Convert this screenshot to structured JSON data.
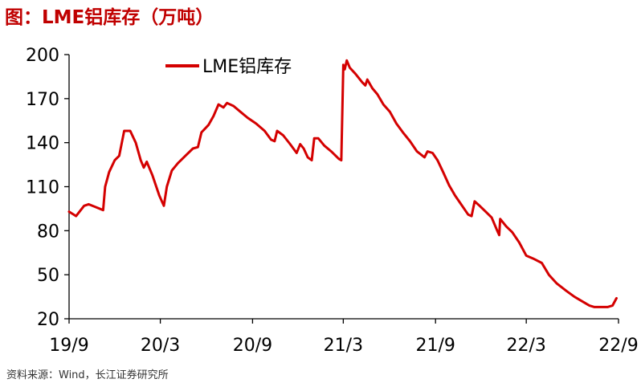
{
  "title": "图：LME铝库存（万吨）",
  "source": "资料来源：Wind，长江证券研究所",
  "colors": {
    "series": "#d40000",
    "title": "#c00000",
    "axis": "#000000"
  },
  "chart_data": {
    "type": "line",
    "title": "图：LME铝库存（万吨）",
    "xlabel": "",
    "ylabel": "",
    "x_ticks": [
      "19/9",
      "20/3",
      "20/9",
      "21/3",
      "21/9",
      "22/3",
      "22/9"
    ],
    "x_tick_dates": [
      "2019-09",
      "2020-03",
      "2020-09",
      "2021-03",
      "2021-09",
      "2022-03",
      "2022-09"
    ],
    "xlim": [
      "2019-09",
      "2022-09"
    ],
    "y_ticks": [
      20,
      50,
      80,
      110,
      140,
      170,
      200
    ],
    "ylim": [
      20,
      200
    ],
    "grid": false,
    "legend_position": "top-left",
    "series": [
      {
        "name": "LME铝库存",
        "color": "#d40000",
        "points": [
          [
            "2019-09-01",
            93
          ],
          [
            "2019-09-15",
            90
          ],
          [
            "2019-10-01",
            97
          ],
          [
            "2019-10-10",
            98
          ],
          [
            "2019-10-25",
            96
          ],
          [
            "2019-11-08",
            94
          ],
          [
            "2019-11-12",
            110
          ],
          [
            "2019-11-20",
            120
          ],
          [
            "2019-12-01",
            128
          ],
          [
            "2019-12-10",
            131
          ],
          [
            "2019-12-20",
            148
          ],
          [
            "2020-01-01",
            148
          ],
          [
            "2020-01-12",
            140
          ],
          [
            "2020-01-22",
            128
          ],
          [
            "2020-01-28",
            123
          ],
          [
            "2020-02-03",
            127
          ],
          [
            "2020-02-14",
            118
          ],
          [
            "2020-02-28",
            104
          ],
          [
            "2020-03-08",
            97
          ],
          [
            "2020-03-14",
            110
          ],
          [
            "2020-03-24",
            121
          ],
          [
            "2020-04-05",
            126
          ],
          [
            "2020-04-20",
            131
          ],
          [
            "2020-05-05",
            136
          ],
          [
            "2020-05-15",
            137
          ],
          [
            "2020-05-22",
            147
          ],
          [
            "2020-06-05",
            152
          ],
          [
            "2020-06-15",
            158
          ],
          [
            "2020-06-25",
            166
          ],
          [
            "2020-07-05",
            164
          ],
          [
            "2020-07-12",
            167
          ],
          [
            "2020-07-25",
            165
          ],
          [
            "2020-08-08",
            161
          ],
          [
            "2020-08-22",
            157
          ],
          [
            "2020-09-08",
            153
          ],
          [
            "2020-09-25",
            148
          ],
          [
            "2020-10-08",
            142
          ],
          [
            "2020-10-15",
            141
          ],
          [
            "2020-10-20",
            148
          ],
          [
            "2020-11-01",
            145
          ],
          [
            "2020-11-15",
            139
          ],
          [
            "2020-11-28",
            133
          ],
          [
            "2020-12-05",
            139
          ],
          [
            "2020-12-12",
            136
          ],
          [
            "2020-12-20",
            130
          ],
          [
            "2020-12-28",
            128
          ],
          [
            "2021-01-02",
            143
          ],
          [
            "2021-01-10",
            143
          ],
          [
            "2021-01-22",
            138
          ],
          [
            "2021-02-05",
            134
          ],
          [
            "2021-02-20",
            129
          ],
          [
            "2021-02-25",
            128
          ],
          [
            "2021-03-01",
            193
          ],
          [
            "2021-03-04",
            190
          ],
          [
            "2021-03-08",
            196
          ],
          [
            "2021-03-14",
            191
          ],
          [
            "2021-03-25",
            187
          ],
          [
            "2021-04-08",
            181
          ],
          [
            "2021-04-14",
            179
          ],
          [
            "2021-04-18",
            183
          ],
          [
            "2021-04-28",
            177
          ],
          [
            "2021-05-08",
            173
          ],
          [
            "2021-05-20",
            166
          ],
          [
            "2021-06-02",
            161
          ],
          [
            "2021-06-15",
            153
          ],
          [
            "2021-06-28",
            147
          ],
          [
            "2021-07-12",
            141
          ],
          [
            "2021-07-26",
            134
          ],
          [
            "2021-08-10",
            130
          ],
          [
            "2021-08-16",
            134
          ],
          [
            "2021-08-26",
            133
          ],
          [
            "2021-09-05",
            128
          ],
          [
            "2021-09-16",
            120
          ],
          [
            "2021-09-28",
            111
          ],
          [
            "2021-10-10",
            104
          ],
          [
            "2021-10-22",
            98
          ],
          [
            "2021-11-05",
            91
          ],
          [
            "2021-11-12",
            90
          ],
          [
            "2021-11-18",
            100
          ],
          [
            "2021-11-28",
            97
          ],
          [
            "2021-12-10",
            93
          ],
          [
            "2021-12-22",
            89
          ],
          [
            "2022-01-02",
            80
          ],
          [
            "2022-01-06",
            77
          ],
          [
            "2022-01-08",
            88
          ],
          [
            "2022-01-20",
            83
          ],
          [
            "2022-02-01",
            79
          ],
          [
            "2022-02-15",
            72
          ],
          [
            "2022-03-01",
            63
          ],
          [
            "2022-03-15",
            61
          ],
          [
            "2022-04-01",
            58
          ],
          [
            "2022-04-15",
            50
          ],
          [
            "2022-05-01",
            44
          ],
          [
            "2022-05-20",
            39
          ],
          [
            "2022-06-05",
            35
          ],
          [
            "2022-06-20",
            32
          ],
          [
            "2022-07-05",
            29
          ],
          [
            "2022-07-15",
            28
          ],
          [
            "2022-08-10",
            28
          ],
          [
            "2022-08-20",
            29
          ],
          [
            "2022-08-28",
            34
          ]
        ]
      }
    ]
  }
}
